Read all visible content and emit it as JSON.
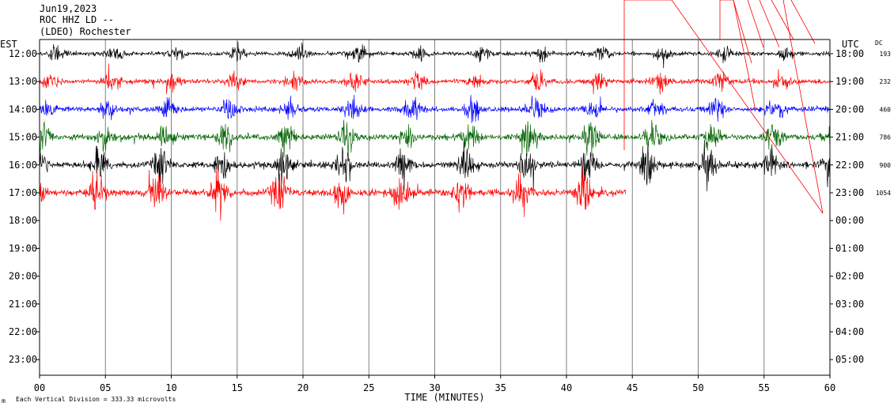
{
  "header": {
    "date": "Jun19,2023",
    "station": "ROC HHZ LD --",
    "network": "(LDEO) Rochester"
  },
  "labels": {
    "left_zone": "EST",
    "right_zone": "UTC",
    "dc_header": "DC",
    "x_title": "TIME (MINUTES)",
    "footer": "Each Vertical Division =  333.33 microvolts",
    "corner_mark": "m"
  },
  "chart_data": {
    "type": "line",
    "title": "Jun19,2023 ROC HHZ LD -- (LDEO) Rochester",
    "xlabel": "TIME (MINUTES)",
    "xlim": [
      0,
      60
    ],
    "x_ticks": [
      "00",
      "05",
      "10",
      "15",
      "20",
      "25",
      "30",
      "35",
      "40",
      "45",
      "50",
      "55",
      "60"
    ],
    "rows_est": [
      "12:00",
      "13:00",
      "14:00",
      "15:00",
      "16:00",
      "17:00",
      "18:00",
      "19:00",
      "20:00",
      "21:00",
      "22:00",
      "23:00"
    ],
    "rows_utc": [
      "18:00",
      "19:00",
      "20:00",
      "21:00",
      "22:00",
      "23:00",
      "00:00",
      "01:00",
      "02:00",
      "03:00",
      "04:00",
      "05:00"
    ],
    "dc_values": [
      "193",
      "232",
      "460",
      "786",
      "900",
      "1054"
    ],
    "trace_colors": [
      "#000000",
      "#ff0000",
      "#0000ff",
      "#006400",
      "#000000",
      "#ff0000"
    ],
    "trace_end_minute": [
      60,
      60,
      60,
      60,
      60,
      44.5
    ],
    "vertical_division_microvolts": 333.33,
    "grid": "vertical lines every 5 minutes"
  }
}
